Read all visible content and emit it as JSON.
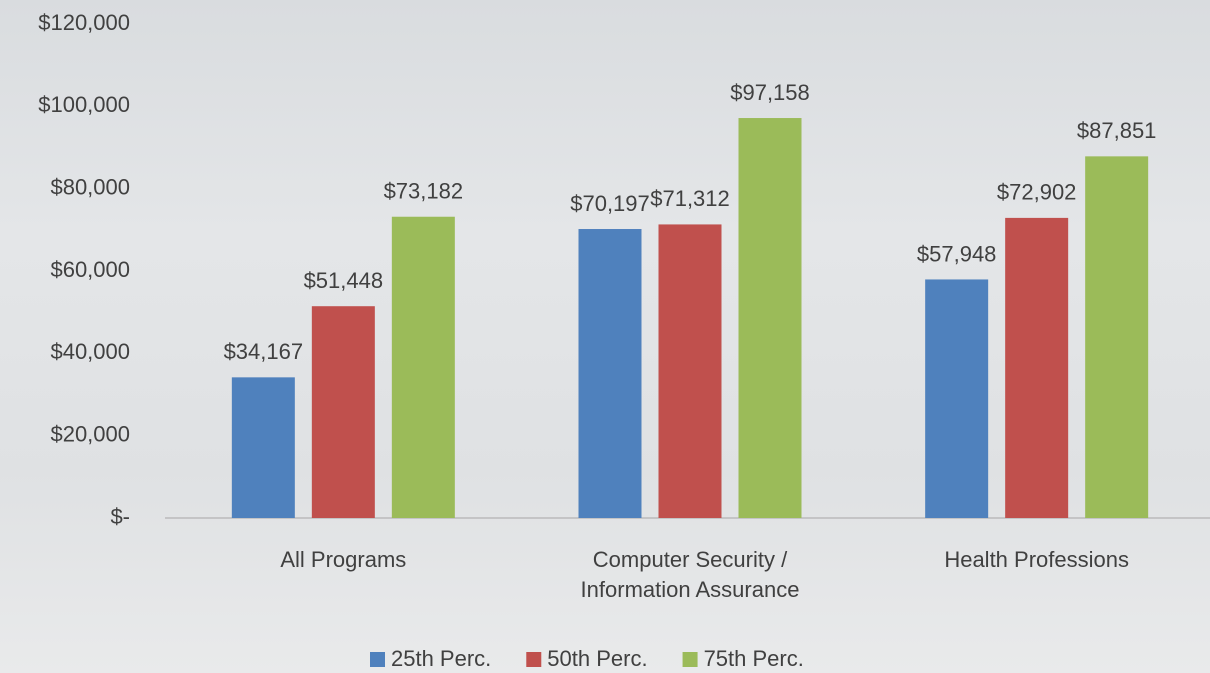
{
  "chart_data": {
    "type": "bar",
    "categories": [
      "All Programs",
      "Computer Security / Information Assurance",
      "Health Professions"
    ],
    "series": [
      {
        "name": "25th Perc.",
        "color": "#4f81bd",
        "values": [
          34167,
          70197,
          57948
        ],
        "value_labels": [
          "$34,167",
          "$70,197",
          "$57,948"
        ]
      },
      {
        "name": "50th Perc.",
        "color": "#c0504d",
        "values": [
          51448,
          71312,
          72902
        ],
        "value_labels": [
          "$51,448",
          "$71,312",
          "$72,902"
        ]
      },
      {
        "name": "75th Perc.",
        "color": "#9bbb59",
        "values": [
          73182,
          97158,
          87851
        ],
        "value_labels": [
          "$73,182",
          "$97,158",
          "$87,851"
        ]
      }
    ],
    "ylim": [
      0,
      120000
    ],
    "yticks": [
      {
        "value": 0,
        "label": "$-"
      },
      {
        "value": 20000,
        "label": "$20,000"
      },
      {
        "value": 40000,
        "label": "$40,000"
      },
      {
        "value": 60000,
        "label": "$60,000"
      },
      {
        "value": 80000,
        "label": "$80,000"
      },
      {
        "value": 100000,
        "label": "$100,000"
      },
      {
        "value": 120000,
        "label": "$120,000"
      }
    ],
    "grid": false,
    "legend": "bottom"
  }
}
